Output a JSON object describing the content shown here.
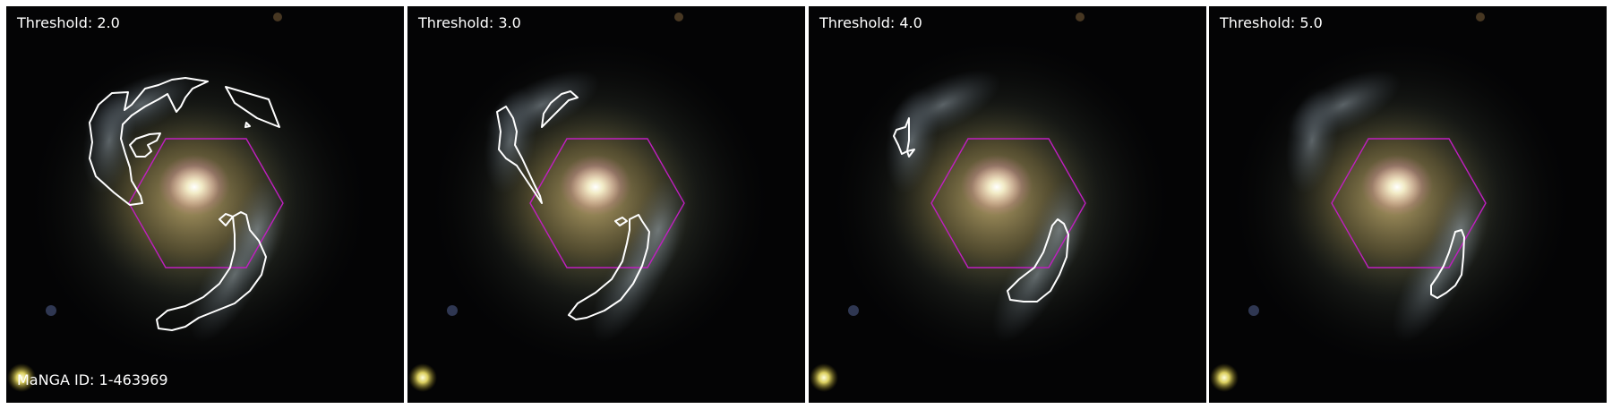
{
  "panels": [
    {
      "label": "Threshold: 2.0"
    },
    {
      "label": "Threshold: 3.0"
    },
    {
      "label": "Threshold: 4.0"
    },
    {
      "label": "Threshold: 5.0"
    }
  ],
  "galaxy_id": "MaNGA ID: 1-463969",
  "colors": {
    "contour": "#ffffff",
    "hexagon": "#c01fc0",
    "background": "#040405"
  }
}
